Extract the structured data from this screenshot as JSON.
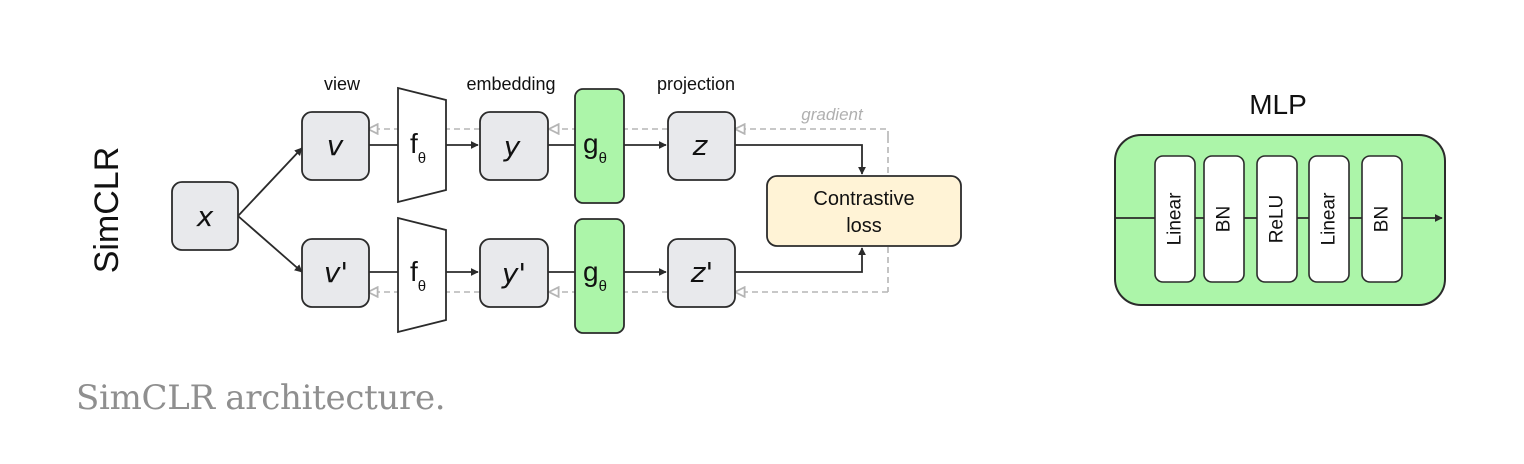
{
  "simclr": {
    "side_title": "SimCLR",
    "input_label": "x",
    "column_labels": {
      "view": "view",
      "embedding": "embedding",
      "projection": "projection"
    },
    "gradient_label": "gradient",
    "top": {
      "view": "v",
      "embedding": "y",
      "projection": "z"
    },
    "bottom": {
      "view": "v'",
      "embedding": "y'",
      "projection": "z'"
    },
    "encoder": {
      "symbol": "f",
      "subscript": "θ"
    },
    "projector": {
      "symbol": "g",
      "subscript": "θ"
    },
    "loss": {
      "line1": "Contrastive",
      "line2": "loss"
    }
  },
  "mlp": {
    "title": "MLP",
    "layers": [
      "Linear",
      "BN",
      "ReLU",
      "Linear",
      "BN"
    ]
  },
  "colors": {
    "gray_box": "#e8e9ec",
    "green": "#acf5a9",
    "loss_box": "#fff3d6",
    "stroke": "#2b2b2b",
    "gradient": "#b5b5b5"
  },
  "caption": "SimCLR architecture."
}
